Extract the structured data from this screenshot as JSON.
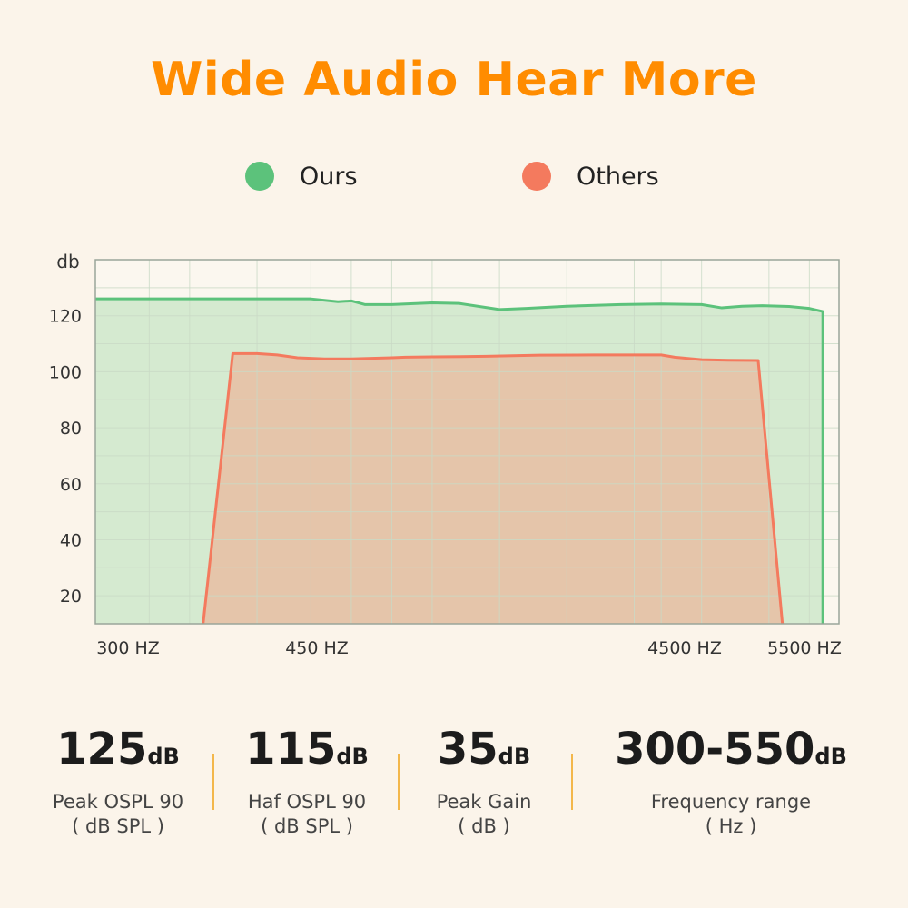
{
  "title": "Wide Audio Hear More",
  "colors": {
    "title": "#ff8c00",
    "ours_line": "#5cc27b",
    "ours_fill": "#d5ead0",
    "others_line": "#f47a5e",
    "others_fill": "#e6c3a8",
    "grid": "#c9d9c5",
    "axis": "#9aa59a",
    "divider": "#f3b74b"
  },
  "legend": {
    "ours": "Ours",
    "others": "Others"
  },
  "chart_data": {
    "type": "area",
    "ylabel": "db",
    "xlabel": "",
    "ylim": [
      10,
      140
    ],
    "yticks": [
      20,
      40,
      60,
      80,
      100,
      120
    ],
    "xticks": [
      "300 HZ",
      "450 HZ",
      "4500 HZ",
      "5500 HZ"
    ],
    "grid": true,
    "legend_position": "top",
    "series": [
      {
        "name": "Ours",
        "points": [
          [
            300,
            126
          ],
          [
            700,
            126
          ],
          [
            1000,
            126
          ],
          [
            1900,
            126
          ],
          [
            2100,
            125
          ],
          [
            2200,
            125.3
          ],
          [
            2300,
            124
          ],
          [
            2500,
            124
          ],
          [
            2800,
            124.6
          ],
          [
            3000,
            124.4
          ],
          [
            3300,
            122.2
          ],
          [
            3500,
            122.6
          ],
          [
            3800,
            123.4
          ],
          [
            4200,
            124
          ],
          [
            4500,
            124.2
          ],
          [
            4800,
            124
          ],
          [
            4950,
            122.8
          ],
          [
            5100,
            123.4
          ],
          [
            5250,
            123.6
          ],
          [
            5450,
            123.3
          ],
          [
            5600,
            122.6
          ],
          [
            5700,
            121.5
          ],
          [
            5700,
            10
          ]
        ]
      },
      {
        "name": "Others",
        "points": [
          [
            1100,
            10
          ],
          [
            1320,
            106.5
          ],
          [
            1500,
            106.5
          ],
          [
            1650,
            106
          ],
          [
            1800,
            105
          ],
          [
            2000,
            104.6
          ],
          [
            2200,
            104.6
          ],
          [
            2500,
            105
          ],
          [
            2600,
            105.2
          ],
          [
            2800,
            105.3
          ],
          [
            3200,
            105.5
          ],
          [
            3600,
            105.9
          ],
          [
            4000,
            106
          ],
          [
            4500,
            106
          ],
          [
            4600,
            105.2
          ],
          [
            4800,
            104.3
          ],
          [
            5000,
            104.1
          ],
          [
            5220,
            104
          ],
          [
            5400,
            10
          ]
        ]
      }
    ]
  },
  "stats": [
    {
      "value": "125",
      "unit": "dB",
      "label": "Peak OSPL 90",
      "sub": "( dB SPL )"
    },
    {
      "value": "115",
      "unit": "dB",
      "label": "Haf OSPL 90",
      "sub": "( dB SPL )"
    },
    {
      "value": "35",
      "unit": "dB",
      "label": "Peak Gain",
      "sub": "( dB )"
    },
    {
      "value": "300-550",
      "unit": "dB",
      "label": "Frequency range",
      "sub": "( Hz )"
    }
  ]
}
